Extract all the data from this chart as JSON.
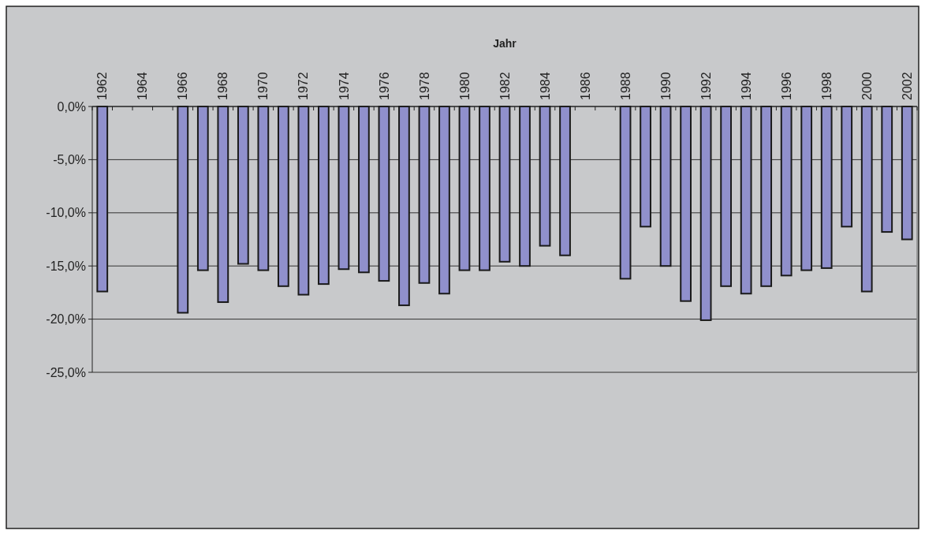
{
  "chart_data": {
    "type": "bar",
    "xlabel": "Jahr",
    "categories": [
      "1962",
      null,
      "1964",
      null,
      "1966",
      null,
      "1968",
      null,
      "1970",
      null,
      "1972",
      null,
      "1974",
      null,
      "1976",
      null,
      "1978",
      null,
      "1980",
      null,
      "1982",
      null,
      "1984",
      null,
      "1986",
      null,
      "1988",
      null,
      "1990",
      null,
      "1992",
      null,
      "1994",
      null,
      "1996",
      null,
      "1998",
      null,
      "2000",
      null,
      "2002"
    ],
    "values": [
      -17.4,
      null,
      null,
      null,
      -19.4,
      -15.4,
      -18.4,
      -14.8,
      -15.4,
      -16.9,
      -17.7,
      -16.7,
      -15.3,
      -15.6,
      -16.4,
      -18.7,
      -16.6,
      -17.6,
      -15.4,
      -15.4,
      -14.6,
      -15.0,
      -13.1,
      -14.0,
      null,
      null,
      -16.2,
      -11.3,
      -15.0,
      -18.3,
      -20.1,
      -16.9,
      -17.6,
      -16.9,
      -15.9,
      -15.4,
      -15.2,
      -11.3,
      -17.4,
      -11.8,
      -12.5
    ],
    "color": "#9090cc",
    "ylim": [
      -25,
      0
    ],
    "yticks": [
      {
        "value": 0,
        "label": "0,0%"
      },
      {
        "value": -5,
        "label": "-5,0%"
      },
      {
        "value": -10,
        "label": "-10,0%"
      },
      {
        "value": -15,
        "label": "-15,0%"
      },
      {
        "value": -20,
        "label": "-20,0%"
      },
      {
        "value": -25,
        "label": "-25,0%"
      }
    ],
    "grid": "y"
  }
}
